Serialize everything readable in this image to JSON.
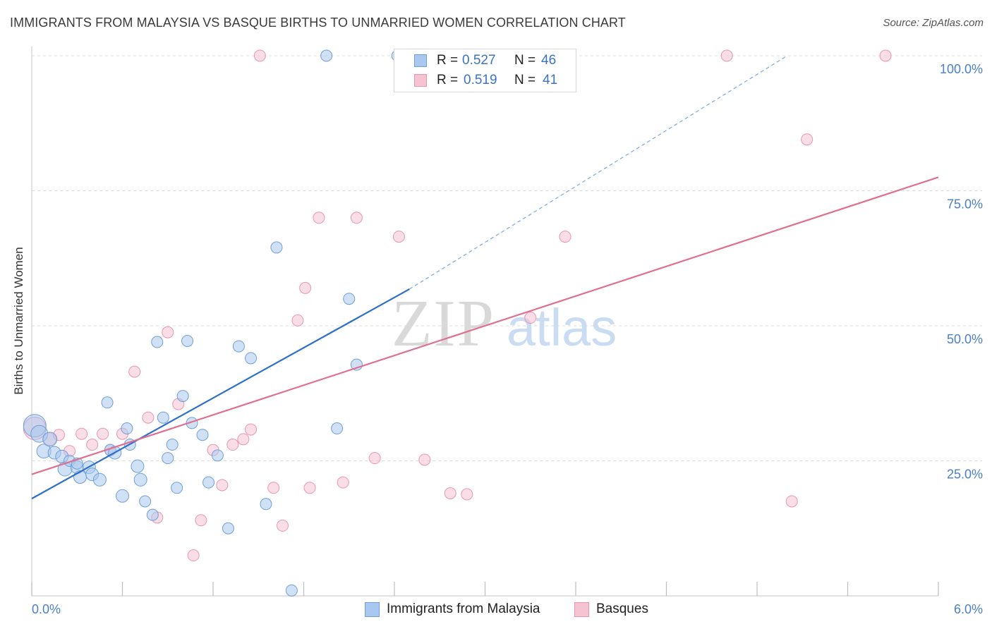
{
  "header": {
    "title": "IMMIGRANTS FROM MALAYSIA VS BASQUE BIRTHS TO UNMARRIED WOMEN CORRELATION CHART",
    "source": "Source: ZipAtlas.com"
  },
  "watermark": {
    "zip": "ZIP",
    "atlas": "atlas"
  },
  "legend": {
    "r_label": "R =",
    "n_label": "N =",
    "items": [
      {
        "r": "0.527",
        "n": "46",
        "color": "#a9c8ef",
        "border": "#6f9fd8"
      },
      {
        "r": "0.519",
        "n": "41",
        "color": "#f6c3d3",
        "border": "#e995b0"
      }
    ]
  },
  "chart_data": {
    "type": "scatter",
    "title": "IMMIGRANTS FROM MALAYSIA VS BASQUE BIRTHS TO UNMARRIED WOMEN CORRELATION CHART",
    "ylabel": "Births to Unmarried Women",
    "xlabel": "",
    "xlim": [
      0.0,
      6.0
    ],
    "ylim": [
      0.0,
      100.0
    ],
    "x_tick_labels": [
      "0.0%",
      "6.0%"
    ],
    "y_tick_labels": [
      "100.0%",
      "75.0%",
      "50.0%",
      "25.0%"
    ],
    "y_ticks": [
      100,
      75,
      50,
      25
    ],
    "grid": true,
    "legend_position": "top-center",
    "series": [
      {
        "name": "Immigrants from Malaysia",
        "color": "#6f9fd8",
        "fill": "#a9c8ef",
        "trend": {
          "x": [
            0.0,
            2.5
          ],
          "y": [
            18.0,
            56.8
          ],
          "dashed_to": [
            5.0,
            100.0
          ],
          "color": "#2f6fcc"
        },
        "points": [
          [
            0.02,
            31.5,
            16
          ],
          [
            0.05,
            30.0,
            12
          ],
          [
            0.08,
            26.8,
            10
          ],
          [
            0.12,
            29.0,
            10
          ],
          [
            0.15,
            26.5,
            9
          ],
          [
            0.2,
            25.8,
            9
          ],
          [
            0.22,
            23.5,
            10
          ],
          [
            0.25,
            25.0,
            8
          ],
          [
            0.3,
            23.8,
            9
          ],
          [
            0.32,
            22.0,
            9
          ],
          [
            0.38,
            23.8,
            9
          ],
          [
            0.4,
            22.5,
            9
          ],
          [
            0.45,
            21.5,
            9
          ],
          [
            0.5,
            35.8,
            8
          ],
          [
            0.52,
            27.0,
            8
          ],
          [
            0.55,
            26.5,
            9
          ],
          [
            0.6,
            18.5,
            9
          ],
          [
            0.63,
            31.0,
            8
          ],
          [
            0.65,
            28.0,
            8
          ],
          [
            0.7,
            24.0,
            9
          ],
          [
            0.72,
            21.5,
            9
          ],
          [
            0.75,
            17.5,
            8
          ],
          [
            0.8,
            15.0,
            8
          ],
          [
            0.83,
            47.0,
            8
          ],
          [
            0.87,
            33.0,
            8
          ],
          [
            0.9,
            25.5,
            8
          ],
          [
            0.93,
            28.0,
            8
          ],
          [
            0.96,
            20.0,
            8
          ],
          [
            1.0,
            37.0,
            8
          ],
          [
            1.03,
            47.2,
            8
          ],
          [
            1.06,
            32.0,
            8
          ],
          [
            1.13,
            29.8,
            8
          ],
          [
            1.17,
            21.0,
            8
          ],
          [
            1.23,
            26.0,
            8
          ],
          [
            1.3,
            12.5,
            8
          ],
          [
            1.37,
            46.2,
            8
          ],
          [
            1.45,
            44.0,
            8
          ],
          [
            1.55,
            17.0,
            8
          ],
          [
            1.62,
            64.5,
            8
          ],
          [
            1.72,
            1.0,
            8
          ],
          [
            1.95,
            100.0,
            8
          ],
          [
            2.02,
            31.0,
            8
          ],
          [
            2.1,
            55.0,
            8
          ],
          [
            2.15,
            42.8,
            8
          ],
          [
            2.42,
            100.0,
            8
          ],
          [
            0.3,
            24.5,
            8
          ]
        ]
      },
      {
        "name": "Basques",
        "color": "#e995b0",
        "fill": "#f6c3d3",
        "trend": {
          "x": [
            0.0,
            6.0
          ],
          "y": [
            22.5,
            77.5
          ],
          "color": "#e0708f"
        },
        "points": [
          [
            0.02,
            31.0,
            16
          ],
          [
            0.12,
            29.0,
            9
          ],
          [
            0.18,
            29.8,
            8
          ],
          [
            0.25,
            26.8,
            8
          ],
          [
            0.33,
            30.0,
            8
          ],
          [
            0.4,
            28.0,
            8
          ],
          [
            0.47,
            30.0,
            8
          ],
          [
            0.52,
            27.0,
            8
          ],
          [
            0.6,
            30.0,
            8
          ],
          [
            0.68,
            41.5,
            8
          ],
          [
            0.77,
            33.0,
            8
          ],
          [
            0.83,
            14.5,
            8
          ],
          [
            0.9,
            48.8,
            8
          ],
          [
            0.97,
            35.5,
            8
          ],
          [
            1.07,
            7.5,
            8
          ],
          [
            1.12,
            14.0,
            8
          ],
          [
            1.2,
            27.0,
            8
          ],
          [
            1.26,
            20.5,
            8
          ],
          [
            1.33,
            28.0,
            8
          ],
          [
            1.4,
            29.0,
            8
          ],
          [
            1.45,
            30.8,
            8
          ],
          [
            1.51,
            100.0,
            8
          ],
          [
            1.6,
            20.0,
            8
          ],
          [
            1.66,
            13.0,
            8
          ],
          [
            1.76,
            51.0,
            8
          ],
          [
            1.81,
            57.0,
            8
          ],
          [
            1.84,
            20.0,
            8
          ],
          [
            1.9,
            70.0,
            8
          ],
          [
            2.06,
            21.0,
            8
          ],
          [
            2.15,
            70.0,
            8
          ],
          [
            2.27,
            25.5,
            8
          ],
          [
            2.43,
            66.5,
            8
          ],
          [
            2.6,
            25.2,
            8
          ],
          [
            2.77,
            19.0,
            8
          ],
          [
            2.88,
            18.8,
            8
          ],
          [
            3.3,
            51.5,
            8
          ],
          [
            3.53,
            66.5,
            8
          ],
          [
            4.6,
            100.0,
            8
          ],
          [
            5.03,
            17.5,
            8
          ],
          [
            5.13,
            84.5,
            8
          ],
          [
            5.65,
            100.0,
            8
          ]
        ]
      }
    ]
  },
  "bottom_legend": [
    {
      "label": "Immigrants from Malaysia"
    },
    {
      "label": "Basques"
    }
  ]
}
